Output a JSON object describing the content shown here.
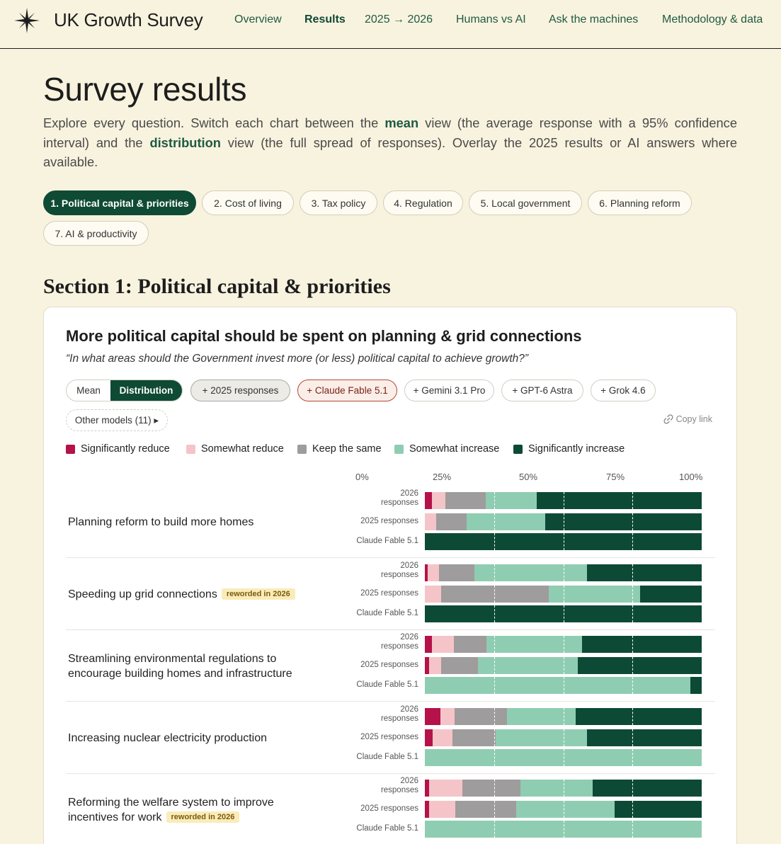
{
  "header": {
    "brand": "UK Growth Survey",
    "logo_icon": "compass-star-icon",
    "nav": [
      {
        "label": "Overview",
        "active": false
      },
      {
        "label": "Results",
        "active": true
      },
      {
        "label": "2025 → 2026",
        "active": false
      },
      {
        "label": "Humans vs AI",
        "active": false
      },
      {
        "label": "Ask the machines",
        "active": false
      },
      {
        "label": "Methodology & data",
        "active": false
      }
    ]
  },
  "page": {
    "title": "Survey results",
    "intro_parts": [
      "Explore every question. Switch each chart between the ",
      "mean",
      " view (the average response with a 95% confidence interval) and the ",
      "distribution",
      " view (the full spread of responses). Overlay the 2025 results or AI answers where available."
    ]
  },
  "section_tabs": [
    {
      "label": "1. Political capital & priorities",
      "active": true
    },
    {
      "label": "2. Cost of living",
      "active": false
    },
    {
      "label": "3. Tax policy",
      "active": false
    },
    {
      "label": "4. Regulation",
      "active": false
    },
    {
      "label": "5. Local government",
      "active": false
    },
    {
      "label": "6. Planning reform",
      "active": false
    },
    {
      "label": "7. AI & productivity",
      "active": false
    }
  ],
  "section": {
    "title": "Section 1: Political capital & priorities"
  },
  "card": {
    "title": "More political capital should be spent on planning & grid connections",
    "subtitle": "“In what areas should the Government invest more (or less) political capital to achieve growth?”",
    "view_toggle": {
      "mean": "Mean",
      "distribution": "Distribution",
      "selected": "Distribution"
    },
    "overlays": [
      "+ 2025 responses",
      "+ Claude Fable 5.1",
      "+ Gemini 3.1 Pro",
      "+ GPT-6 Astra",
      "+ Grok 4.6"
    ],
    "other_models": "Other models (11) ▸",
    "copy_link": "Copy link",
    "link_icon": "link-icon"
  },
  "colors": {
    "sig_reduce": "#b5124a",
    "some_reduce": "#f5c4c8",
    "same": "#9e9c9c",
    "some_increase": "#8fcdb2",
    "sig_increase": "#0d4a36"
  },
  "chart_data": {
    "type": "bar",
    "stacked": true,
    "orientation": "horizontal",
    "x_ticks": [
      "0%",
      "25%",
      "50%",
      "75%",
      "100%"
    ],
    "xlim": [
      0,
      100
    ],
    "legend": [
      "Significantly reduce",
      "Somewhat reduce",
      "Keep the same",
      "Somewhat increase",
      "Significantly increase"
    ],
    "legend_position": "top-left",
    "rows": [
      {
        "question": "Planning reform to build more homes",
        "badge": "",
        "bars": [
          {
            "label": "2026 responses",
            "values": [
              2.5,
              5,
              14.5,
              18.5,
              59.5
            ]
          },
          {
            "label": "2025 responses",
            "values": [
              0,
              4,
              11,
              28.5,
              56.5
            ]
          },
          {
            "label": "Claude Fable 5.1",
            "values": [
              0,
              0,
              0,
              0,
              100
            ]
          }
        ]
      },
      {
        "question": "Speeding up grid connections",
        "badge": "reworded in 2026",
        "bars": [
          {
            "label": "2026 responses",
            "values": [
              1,
              4,
              12.8,
              40.7,
              41.5
            ]
          },
          {
            "label": "2025 responses",
            "values": [
              0,
              6,
              38.8,
              33,
              22.2
            ]
          },
          {
            "label": "Claude Fable 5.1",
            "values": [
              0,
              0,
              0,
              0,
              100
            ]
          }
        ]
      },
      {
        "question": "Streamlining environmental regulations to encourage building homes and infrastructure",
        "badge": "",
        "bars": [
          {
            "label": "2026 responses",
            "values": [
              2.5,
              8,
              11.8,
              34.5,
              43.2
            ]
          },
          {
            "label": "2025 responses",
            "values": [
              1.5,
              4.3,
              13.5,
              36,
              44.7
            ]
          },
          {
            "label": "Claude Fable 5.1",
            "values": [
              0,
              0,
              0,
              96,
              4
            ]
          }
        ]
      },
      {
        "question": "Increasing nuclear electricity production",
        "badge": "",
        "bars": [
          {
            "label": "2026 responses",
            "values": [
              5.5,
              5.2,
              19,
              24.8,
              45.5
            ]
          },
          {
            "label": "2025 responses",
            "values": [
              2.8,
              7.2,
              15.5,
              33,
              41.5
            ]
          },
          {
            "label": "Claude Fable 5.1",
            "values": [
              0,
              0,
              0,
              100,
              0
            ]
          }
        ]
      },
      {
        "question": "Reforming the welfare system to improve incentives for work",
        "badge": "reworded in 2026",
        "bars": [
          {
            "label": "2026 responses",
            "values": [
              1.5,
              12,
              21,
              26,
              39.5
            ]
          },
          {
            "label": "2025 responses",
            "values": [
              1.5,
              9.5,
              22,
              35.5,
              31.5
            ]
          },
          {
            "label": "Claude Fable 5.1",
            "values": [
              0,
              0,
              0,
              100,
              0
            ]
          }
        ]
      }
    ]
  }
}
